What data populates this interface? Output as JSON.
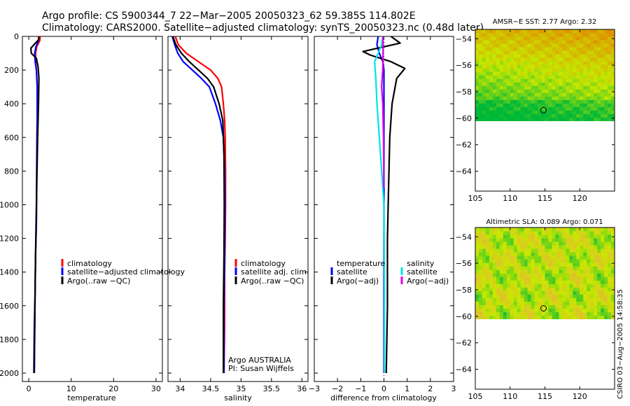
{
  "title_line1": "Argo profile: CS 5900344_7 22−Mar−2005 20050323_62 59.385S 114.802E",
  "title_line2": "Climatology: CARS2000. Satellite−adjusted climatology: synTS_20050323.nc (0.48d later)",
  "side_label": "CSIRO 03−Aug−2005 14:58:35",
  "colors": {
    "climatology": "#ff0000",
    "satellite": "#0000ff",
    "argo": "#000000",
    "sal_sat": "#00e5e5",
    "sal_argo": "#e000e0"
  },
  "chart_data": [
    {
      "type": "line",
      "xlabel": "temperature",
      "xlim": [
        -1.5,
        31.5
      ],
      "ylim": [
        2050,
        0
      ],
      "xticks": [
        0,
        10,
        20,
        30
      ],
      "yticks": [
        0,
        200,
        400,
        600,
        800,
        1000,
        1200,
        1400,
        1600,
        1800,
        2000
      ],
      "legend": [
        "climatology",
        "satellite−adjusted climatology",
        "Argo(..raw −QC)"
      ],
      "series": [
        {
          "name": "climatology",
          "color": "red",
          "x": [
            2.7,
            2.6,
            1.9,
            1.6,
            1.6,
            1.8,
            2.0,
            2.0,
            1.9,
            1.85,
            1.8,
            1.6,
            1.5,
            1.4,
            1.3
          ],
          "y": [
            0,
            25,
            60,
            100,
            150,
            200,
            300,
            450,
            700,
            900,
            1100,
            1300,
            1500,
            1750,
            2000
          ]
        },
        {
          "name": "satellite−adjusted climatology",
          "color": "blue",
          "x": [
            2.4,
            2.3,
            1.7,
            1.4,
            1.5,
            1.8,
            2.0,
            2.0,
            1.9,
            1.85,
            1.8,
            1.6,
            1.5,
            1.4,
            1.3
          ],
          "y": [
            0,
            25,
            60,
            100,
            150,
            200,
            300,
            450,
            700,
            900,
            1100,
            1300,
            1500,
            1750,
            2000
          ]
        },
        {
          "name": "Argo(..raw −QC)",
          "color": "black",
          "x": [
            2.4,
            2.3,
            0.5,
            0.6,
            1.8,
            2.2,
            2.4,
            2.3,
            2.1,
            1.95,
            1.8,
            1.6,
            1.5,
            1.3,
            1.2
          ],
          "y": [
            0,
            20,
            70,
            100,
            130,
            180,
            250,
            400,
            600,
            800,
            1000,
            1300,
            1500,
            1750,
            2000
          ]
        }
      ]
    },
    {
      "type": "line",
      "xlabel": "salinity",
      "xlim": [
        33.8,
        36.1
      ],
      "ylim": [
        2050,
        0
      ],
      "xticks": [
        34,
        34.5,
        35,
        35.5,
        36
      ],
      "legend": [
        "climatology",
        "satellite adj. clim.",
        "Argo(..raw −QC)"
      ],
      "annotation": [
        "Argo AUSTRALIA",
        "PI: Susan Wijffels"
      ],
      "series": [
        {
          "name": "climatology",
          "color": "red",
          "x": [
            33.92,
            33.97,
            34.1,
            34.3,
            34.5,
            34.62,
            34.68,
            34.71,
            34.73,
            34.74,
            34.745,
            34.745,
            34.74,
            34.73,
            34.73,
            34.72
          ],
          "y": [
            0,
            50,
            100,
            150,
            200,
            250,
            300,
            400,
            500,
            600,
            800,
            1000,
            1200,
            1400,
            1700,
            2000
          ]
        },
        {
          "name": "satellite adj. clim.",
          "color": "blue",
          "x": [
            33.87,
            33.91,
            33.96,
            34.05,
            34.2,
            34.35,
            34.48,
            34.58,
            34.66,
            34.71,
            34.73,
            34.735,
            34.73,
            34.72,
            34.72
          ],
          "y": [
            0,
            50,
            100,
            150,
            200,
            250,
            300,
            400,
            500,
            600,
            800,
            1000,
            1300,
            1600,
            2000
          ]
        },
        {
          "name": "Argo(..raw −QC)",
          "color": "black",
          "x": [
            33.88,
            33.93,
            34.02,
            34.15,
            34.3,
            34.45,
            34.55,
            34.64,
            34.7,
            34.72,
            34.725,
            34.72,
            34.71,
            34.71
          ],
          "y": [
            0,
            50,
            100,
            150,
            200,
            250,
            300,
            400,
            500,
            700,
            1000,
            1300,
            1600,
            2000
          ]
        }
      ]
    },
    {
      "type": "line",
      "xlabel": "difference from climatology",
      "xlim": [
        -3,
        3
      ],
      "ylim": [
        2050,
        0
      ],
      "xticks": [
        -3,
        -2,
        -1,
        0,
        1,
        2,
        3
      ],
      "legend_left": [
        "temperature",
        "satellite",
        "Argo(−adj)"
      ],
      "legend_right": [
        "salinity",
        "satellite",
        "Argo(−adj)"
      ],
      "series": [
        {
          "name": "temperature satellite",
          "color": "blue",
          "x": [
            -0.25,
            -0.3,
            -0.2,
            -0.05,
            0,
            0,
            0,
            0,
            0,
            0
          ],
          "y": [
            0,
            50,
            100,
            150,
            200,
            400,
            800,
            1200,
            1600,
            2000
          ]
        },
        {
          "name": "temperature Argo(−adj)",
          "color": "black",
          "x": [
            0.3,
            0.7,
            -0.9,
            -0.6,
            0.3,
            0.9,
            0.55,
            0.35,
            0.25,
            0.2,
            0.15,
            0.15,
            0.1
          ],
          "y": [
            0,
            40,
            90,
            110,
            150,
            190,
            250,
            400,
            600,
            900,
            1200,
            1600,
            2000
          ]
        },
        {
          "name": "salinity satellite",
          "color": "cyan",
          "x": [
            -0.05,
            -0.1,
            -0.4,
            -0.35,
            -0.3,
            -0.2,
            -0.1,
            0,
            0.02,
            0.02
          ],
          "y": [
            0,
            50,
            150,
            250,
            400,
            600,
            800,
            1000,
            1500,
            2000
          ]
        },
        {
          "name": "salinity Argo(−adj)",
          "color": "magenta",
          "x": [
            -0.04,
            -0.04,
            -0.05,
            -0.1,
            -0.05,
            -0.02,
            -0.01,
            -0.01
          ],
          "y": [
            0,
            100,
            200,
            300,
            400,
            600,
            800,
            900
          ]
        }
      ]
    },
    {
      "type": "heatmap",
      "title": "AMSR−E SST: 2.77 Argo: 2.32",
      "xlim": [
        105,
        125
      ],
      "ylim": [
        -65.5,
        -53.3
      ],
      "data_ylim": [
        -60.2,
        -53.3
      ],
      "xticks": [
        105,
        110,
        115,
        120
      ],
      "yticks": [
        -54,
        -56,
        -58,
        -60,
        -62,
        -64
      ],
      "marker": [
        114.8,
        -59.4
      ],
      "colors": {
        "low": "#00b838",
        "mid": "#c9e800",
        "high": "#e08a00"
      }
    },
    {
      "type": "heatmap",
      "title": "Altimetric SLA: 0.089 Argo: 0.071",
      "xlim": [
        105,
        125
      ],
      "ylim": [
        -65.5,
        -53.3
      ],
      "data_ylim": [
        -60.2,
        -53.3
      ],
      "xticks": [
        105,
        110,
        115,
        120
      ],
      "yticks": [
        -54,
        -56,
        -58,
        -60,
        -62,
        -64
      ],
      "marker": [
        114.8,
        -59.4
      ],
      "colors": {
        "low": "#00b838",
        "mid": "#c9e800",
        "high": "#f2a050"
      }
    }
  ]
}
